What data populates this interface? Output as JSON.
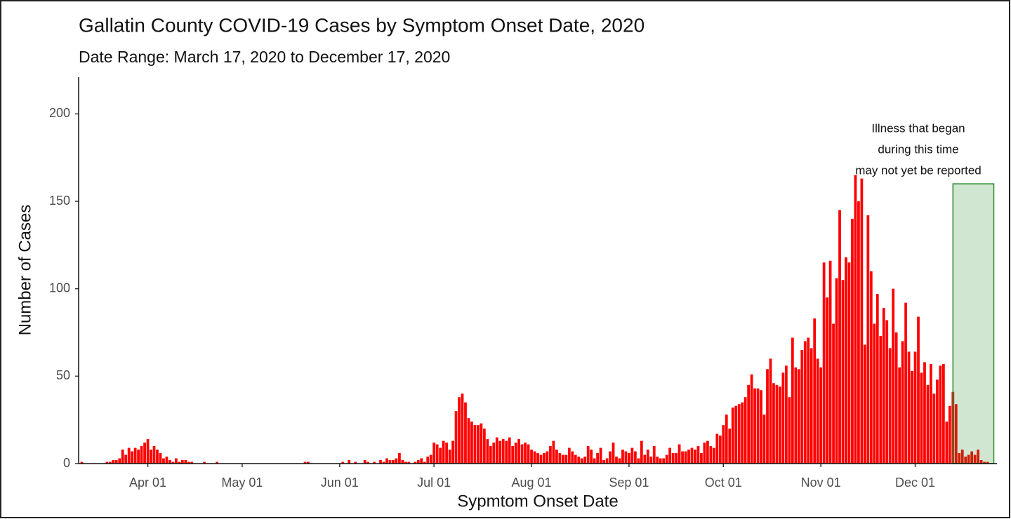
{
  "chart_data": {
    "type": "bar",
    "title": "Gallatin County COVID-19 Cases by Symptom Onset Date, 2020",
    "subtitle": "Date Range: March 17, 2020 to December 17, 2020",
    "x_label": "Sypmtom Onset Date",
    "y_label": "Number of Cases",
    "color": "#ff0000",
    "grid": false,
    "xlim": [
      "03-10",
      "12-27"
    ],
    "ylim": [
      0,
      221
    ],
    "yticks": [
      0,
      50,
      100,
      150,
      200
    ],
    "xticks": [
      {
        "value": "04-01",
        "label": "Apr 01"
      },
      {
        "value": "05-01",
        "label": "May 01"
      },
      {
        "value": "06-01",
        "label": "Jun 01"
      },
      {
        "value": "07-01",
        "label": "Jul 01"
      },
      {
        "value": "08-01",
        "label": "Aug 01"
      },
      {
        "value": "09-01",
        "label": "Sep 01"
      },
      {
        "value": "10-01",
        "label": "Oct 01"
      },
      {
        "value": "11-01",
        "label": "Nov 01"
      },
      {
        "value": "12-01",
        "label": "Dec 01"
      }
    ],
    "annotation": {
      "lines": [
        "Illness that began",
        "during this time",
        "may not yet be reported"
      ],
      "xrange": [
        "12-13",
        "12-26"
      ],
      "ytop": 160,
      "color": "#2e8b2e"
    },
    "x": [
      "03-10",
      "03-11",
      "03-12",
      "03-13",
      "03-14",
      "03-15",
      "03-16",
      "03-17",
      "03-18",
      "03-19",
      "03-20",
      "03-21",
      "03-22",
      "03-23",
      "03-24",
      "03-25",
      "03-26",
      "03-27",
      "03-28",
      "03-29",
      "03-30",
      "03-31",
      "04-01",
      "04-02",
      "04-03",
      "04-04",
      "04-05",
      "04-06",
      "04-07",
      "04-08",
      "04-09",
      "04-10",
      "04-11",
      "04-12",
      "04-13",
      "04-14",
      "04-15",
      "04-16",
      "04-17",
      "04-18",
      "04-19",
      "04-20",
      "04-21",
      "04-22",
      "04-23",
      "04-24",
      "04-25",
      "04-26",
      "04-27",
      "04-28",
      "04-29",
      "04-30",
      "05-01",
      "05-02",
      "05-03",
      "05-04",
      "05-05",
      "05-06",
      "05-07",
      "05-08",
      "05-09",
      "05-10",
      "05-11",
      "05-12",
      "05-13",
      "05-14",
      "05-15",
      "05-16",
      "05-17",
      "05-18",
      "05-19",
      "05-20",
      "05-21",
      "05-22",
      "05-23",
      "05-24",
      "05-25",
      "05-26",
      "05-27",
      "05-28",
      "05-29",
      "05-30",
      "05-31",
      "06-01",
      "06-02",
      "06-03",
      "06-04",
      "06-05",
      "06-06",
      "06-07",
      "06-08",
      "06-09",
      "06-10",
      "06-11",
      "06-12",
      "06-13",
      "06-14",
      "06-15",
      "06-16",
      "06-17",
      "06-18",
      "06-19",
      "06-20",
      "06-21",
      "06-22",
      "06-23",
      "06-24",
      "06-25",
      "06-26",
      "06-27",
      "06-28",
      "06-29",
      "06-30",
      "07-01",
      "07-02",
      "07-03",
      "07-04",
      "07-05",
      "07-06",
      "07-07",
      "07-08",
      "07-09",
      "07-10",
      "07-11",
      "07-12",
      "07-13",
      "07-14",
      "07-15",
      "07-16",
      "07-17",
      "07-18",
      "07-19",
      "07-20",
      "07-21",
      "07-22",
      "07-23",
      "07-24",
      "07-25",
      "07-26",
      "07-27",
      "07-28",
      "07-29",
      "07-30",
      "07-31",
      "08-01",
      "08-02",
      "08-03",
      "08-04",
      "08-05",
      "08-06",
      "08-07",
      "08-08",
      "08-09",
      "08-10",
      "08-11",
      "08-12",
      "08-13",
      "08-14",
      "08-15",
      "08-16",
      "08-17",
      "08-18",
      "08-19",
      "08-20",
      "08-21",
      "08-22",
      "08-23",
      "08-24",
      "08-25",
      "08-26",
      "08-27",
      "08-28",
      "08-29",
      "08-30",
      "08-31",
      "09-01",
      "09-02",
      "09-03",
      "09-04",
      "09-05",
      "09-06",
      "09-07",
      "09-08",
      "09-09",
      "09-10",
      "09-11",
      "09-12",
      "09-13",
      "09-14",
      "09-15",
      "09-16",
      "09-17",
      "09-18",
      "09-19",
      "09-20",
      "09-21",
      "09-22",
      "09-23",
      "09-24",
      "09-25",
      "09-26",
      "09-27",
      "09-28",
      "09-29",
      "09-30",
      "10-01",
      "10-02",
      "10-03",
      "10-04",
      "10-05",
      "10-06",
      "10-07",
      "10-08",
      "10-09",
      "10-10",
      "10-11",
      "10-12",
      "10-13",
      "10-14",
      "10-15",
      "10-16",
      "10-17",
      "10-18",
      "10-19",
      "10-20",
      "10-21",
      "10-22",
      "10-23",
      "10-24",
      "10-25",
      "10-26",
      "10-27",
      "10-28",
      "10-29",
      "10-30",
      "10-31",
      "11-01",
      "11-02",
      "11-03",
      "11-04",
      "11-05",
      "11-06",
      "11-07",
      "11-08",
      "11-09",
      "11-10",
      "11-11",
      "11-12",
      "11-13",
      "11-14",
      "11-15",
      "11-16",
      "11-17",
      "11-18",
      "11-19",
      "11-20",
      "11-21",
      "11-22",
      "11-23",
      "11-24",
      "11-25",
      "11-26",
      "11-27",
      "11-28",
      "11-29",
      "11-30",
      "12-01",
      "12-02",
      "12-03",
      "12-04",
      "12-05",
      "12-06",
      "12-07",
      "12-08",
      "12-09",
      "12-10",
      "12-11",
      "12-12",
      "12-13",
      "12-14",
      "12-15",
      "12-16",
      "12-17",
      "12-18",
      "12-19",
      "12-20",
      "12-21",
      "12-22",
      "12-23",
      "12-24"
    ],
    "values": [
      0,
      1,
      0,
      0,
      0,
      0,
      0,
      0,
      0,
      1,
      1,
      2,
      2,
      3,
      8,
      5,
      9,
      7,
      9,
      8,
      10,
      12,
      14,
      8,
      10,
      8,
      6,
      3,
      4,
      2,
      1,
      3,
      1,
      2,
      2,
      1,
      1,
      0,
      0,
      0,
      1,
      0,
      0,
      0,
      1,
      0,
      0,
      0,
      0,
      0,
      0,
      0,
      0,
      0,
      0,
      0,
      0,
      0,
      0,
      0,
      0,
      0,
      0,
      0,
      0,
      0,
      0,
      0,
      0,
      0,
      0,
      0,
      1,
      1,
      0,
      0,
      0,
      0,
      0,
      0,
      0,
      0,
      0,
      0,
      1,
      0,
      2,
      0,
      1,
      0,
      0,
      2,
      1,
      0,
      1,
      0,
      2,
      1,
      3,
      2,
      2,
      3,
      6,
      2,
      1,
      1,
      0,
      1,
      2,
      3,
      1,
      4,
      5,
      12,
      11,
      9,
      13,
      12,
      8,
      13,
      30,
      38,
      40,
      35,
      26,
      24,
      22,
      22,
      23,
      20,
      14,
      10,
      12,
      15,
      13,
      14,
      13,
      15,
      10,
      12,
      14,
      11,
      12,
      11,
      8,
      7,
      6,
      5,
      6,
      7,
      10,
      13,
      8,
      6,
      5,
      5,
      9,
      7,
      5,
      4,
      3,
      4,
      10,
      8,
      3,
      6,
      9,
      2,
      3,
      7,
      12,
      4,
      3,
      8,
      7,
      6,
      9,
      7,
      3,
      13,
      5,
      8,
      4,
      10,
      4,
      3,
      3,
      5,
      9,
      6,
      6,
      11,
      7,
      7,
      8,
      9,
      8,
      10,
      6,
      12,
      13,
      10,
      9,
      17,
      16,
      22,
      28,
      20,
      32,
      33,
      34,
      35,
      38,
      45,
      51,
      43,
      43,
      42,
      28,
      54,
      60,
      46,
      45,
      44,
      52,
      56,
      38,
      72,
      55,
      54,
      65,
      70,
      72,
      66,
      83,
      60,
      55,
      115,
      95,
      116,
      80,
      106,
      145,
      105,
      118,
      115,
      140,
      165,
      150,
      163,
      68,
      142,
      110,
      80,
      97,
      73,
      89,
      82,
      66,
      100,
      75,
      55,
      70,
      92,
      64,
      53,
      64,
      84,
      52,
      58,
      45,
      57,
      40,
      48,
      56,
      57,
      24,
      33,
      41,
      34,
      6,
      8,
      4,
      5,
      7,
      5,
      8,
      2,
      1,
      1
    ]
  }
}
